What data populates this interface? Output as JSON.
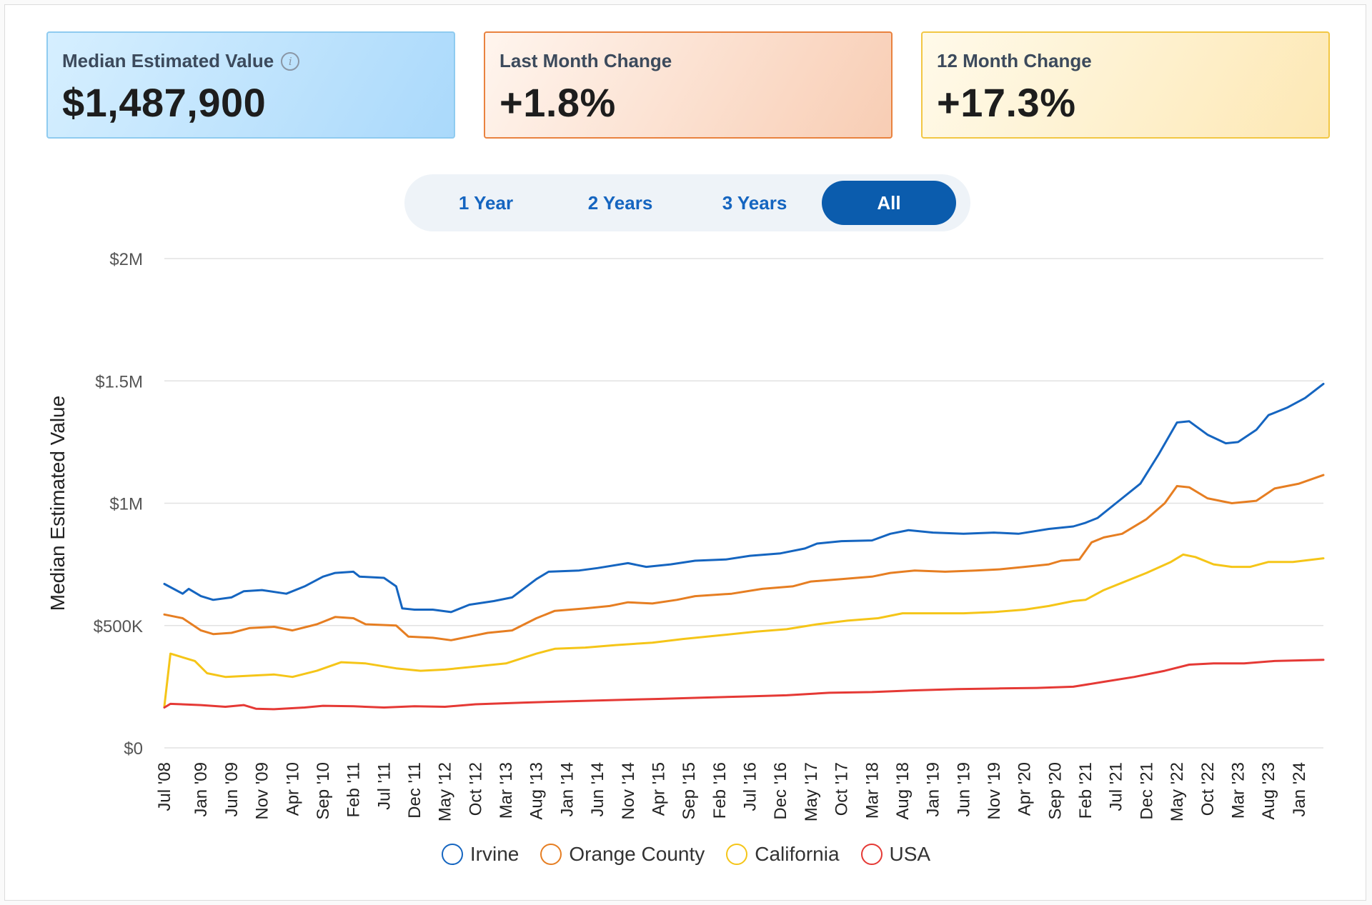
{
  "cards": [
    {
      "label": "Median Estimated Value",
      "value": "$1,487,900",
      "has_info": true
    },
    {
      "label": "Last Month Change",
      "value": "+1.8%"
    },
    {
      "label": "12 Month Change",
      "value": "+17.3%"
    }
  ],
  "info_icon": "info-icon",
  "range_tabs": [
    {
      "label": "1 Year",
      "active": false
    },
    {
      "label": "2 Years",
      "active": false
    },
    {
      "label": "3 Years",
      "active": false
    },
    {
      "label": "All",
      "active": true
    }
  ],
  "colors": {
    "accent": "#0b5cad",
    "grid": "#e2e2e2",
    "irvine": "#1565c0",
    "orange_county": "#e67e22",
    "california": "#f5c518",
    "usa": "#e53935"
  },
  "chart_data": {
    "type": "line",
    "ylabel": "Median Estimated Value",
    "xlabel": "",
    "ylim": [
      0,
      2000000
    ],
    "yticks": [
      {
        "value": 0,
        "label": "$0"
      },
      {
        "value": 500000,
        "label": "$500K"
      },
      {
        "value": 1000000,
        "label": "$1M"
      },
      {
        "value": 1500000,
        "label": "$1.5M"
      },
      {
        "value": 2000000,
        "label": "$2M"
      }
    ],
    "x_start": "2008-07",
    "x_end": "2024-05",
    "xticks": [
      "Jul '08",
      "Jan '09",
      "Jun '09",
      "Nov '09",
      "Apr '10",
      "Sep '10",
      "Feb '11",
      "Jul '11",
      "Dec '11",
      "May '12",
      "Oct '12",
      "Mar '13",
      "Aug '13",
      "Jan '14",
      "Jun '14",
      "Nov '14",
      "Apr '15",
      "Sep '15",
      "Feb '16",
      "Jul '16",
      "Dec '16",
      "May '17",
      "Oct '17",
      "Mar '18",
      "Aug '18",
      "Jan '19",
      "Jun '19",
      "Nov '19",
      "Apr '20",
      "Sep '20",
      "Feb '21",
      "Jul '21",
      "Dec '21",
      "May '22",
      "Oct '22",
      "Mar '23",
      "Aug '23",
      "Jan '24"
    ],
    "legend_position": "bottom",
    "series": [
      {
        "name": "Irvine",
        "color": "#1565c0",
        "points": [
          [
            "2008-07",
            670000
          ],
          [
            "2008-10",
            630000
          ],
          [
            "2008-11",
            650000
          ],
          [
            "2009-01",
            620000
          ],
          [
            "2009-03",
            605000
          ],
          [
            "2009-06",
            615000
          ],
          [
            "2009-08",
            640000
          ],
          [
            "2009-11",
            645000
          ],
          [
            "2010-03",
            630000
          ],
          [
            "2010-06",
            660000
          ],
          [
            "2010-09",
            700000
          ],
          [
            "2010-11",
            715000
          ],
          [
            "2011-02",
            720000
          ],
          [
            "2011-03",
            700000
          ],
          [
            "2011-07",
            695000
          ],
          [
            "2011-09",
            660000
          ],
          [
            "2011-10",
            570000
          ],
          [
            "2011-12",
            565000
          ],
          [
            "2012-03",
            565000
          ],
          [
            "2012-06",
            555000
          ],
          [
            "2012-09",
            585000
          ],
          [
            "2013-01",
            600000
          ],
          [
            "2013-04",
            615000
          ],
          [
            "2013-08",
            690000
          ],
          [
            "2013-10",
            720000
          ],
          [
            "2014-03",
            725000
          ],
          [
            "2014-06",
            735000
          ],
          [
            "2014-11",
            755000
          ],
          [
            "2015-02",
            740000
          ],
          [
            "2015-06",
            750000
          ],
          [
            "2015-10",
            765000
          ],
          [
            "2016-03",
            770000
          ],
          [
            "2016-07",
            785000
          ],
          [
            "2016-12",
            795000
          ],
          [
            "2017-04",
            815000
          ],
          [
            "2017-06",
            835000
          ],
          [
            "2017-10",
            845000
          ],
          [
            "2018-03",
            848000
          ],
          [
            "2018-06",
            875000
          ],
          [
            "2018-09",
            890000
          ],
          [
            "2019-01",
            880000
          ],
          [
            "2019-06",
            875000
          ],
          [
            "2019-11",
            880000
          ],
          [
            "2020-03",
            875000
          ],
          [
            "2020-08",
            895000
          ],
          [
            "2020-12",
            905000
          ],
          [
            "2021-02",
            920000
          ],
          [
            "2021-04",
            940000
          ],
          [
            "2021-07",
            1000000
          ],
          [
            "2021-11",
            1080000
          ],
          [
            "2022-02",
            1200000
          ],
          [
            "2022-05",
            1330000
          ],
          [
            "2022-07",
            1335000
          ],
          [
            "2022-10",
            1280000
          ],
          [
            "2023-01",
            1245000
          ],
          [
            "2023-03",
            1250000
          ],
          [
            "2023-06",
            1300000
          ],
          [
            "2023-08",
            1360000
          ],
          [
            "2023-11",
            1390000
          ],
          [
            "2024-02",
            1430000
          ],
          [
            "2024-05",
            1487900
          ]
        ]
      },
      {
        "name": "Orange County",
        "color": "#e67e22",
        "points": [
          [
            "2008-07",
            545000
          ],
          [
            "2008-10",
            530000
          ],
          [
            "2009-01",
            480000
          ],
          [
            "2009-03",
            465000
          ],
          [
            "2009-06",
            470000
          ],
          [
            "2009-09",
            490000
          ],
          [
            "2010-01",
            495000
          ],
          [
            "2010-04",
            480000
          ],
          [
            "2010-08",
            505000
          ],
          [
            "2010-11",
            535000
          ],
          [
            "2011-02",
            530000
          ],
          [
            "2011-04",
            505000
          ],
          [
            "2011-09",
            500000
          ],
          [
            "2011-11",
            455000
          ],
          [
            "2012-03",
            450000
          ],
          [
            "2012-06",
            440000
          ],
          [
            "2012-09",
            455000
          ],
          [
            "2012-12",
            470000
          ],
          [
            "2013-04",
            480000
          ],
          [
            "2013-08",
            530000
          ],
          [
            "2013-11",
            560000
          ],
          [
            "2014-04",
            570000
          ],
          [
            "2014-08",
            580000
          ],
          [
            "2014-11",
            595000
          ],
          [
            "2015-03",
            590000
          ],
          [
            "2015-07",
            605000
          ],
          [
            "2015-10",
            620000
          ],
          [
            "2016-04",
            630000
          ],
          [
            "2016-09",
            650000
          ],
          [
            "2017-02",
            660000
          ],
          [
            "2017-05",
            680000
          ],
          [
            "2017-10",
            690000
          ],
          [
            "2018-03",
            700000
          ],
          [
            "2018-06",
            715000
          ],
          [
            "2018-10",
            725000
          ],
          [
            "2019-03",
            720000
          ],
          [
            "2019-08",
            725000
          ],
          [
            "2019-12",
            730000
          ],
          [
            "2020-04",
            740000
          ],
          [
            "2020-08",
            750000
          ],
          [
            "2020-10",
            765000
          ],
          [
            "2021-01",
            770000
          ],
          [
            "2021-03",
            840000
          ],
          [
            "2021-05",
            860000
          ],
          [
            "2021-08",
            875000
          ],
          [
            "2021-12",
            935000
          ],
          [
            "2022-03",
            1000000
          ],
          [
            "2022-05",
            1070000
          ],
          [
            "2022-07",
            1065000
          ],
          [
            "2022-10",
            1020000
          ],
          [
            "2023-02",
            1000000
          ],
          [
            "2023-06",
            1010000
          ],
          [
            "2023-09",
            1060000
          ],
          [
            "2024-01",
            1080000
          ],
          [
            "2024-05",
            1115000
          ]
        ]
      },
      {
        "name": "California",
        "color": "#f5c518",
        "points": [
          [
            "2008-07",
            170000
          ],
          [
            "2008-08",
            385000
          ],
          [
            "2008-12",
            355000
          ],
          [
            "2009-02",
            305000
          ],
          [
            "2009-05",
            290000
          ],
          [
            "2009-09",
            295000
          ],
          [
            "2010-01",
            300000
          ],
          [
            "2010-04",
            290000
          ],
          [
            "2010-08",
            315000
          ],
          [
            "2010-12",
            350000
          ],
          [
            "2011-04",
            345000
          ],
          [
            "2011-09",
            325000
          ],
          [
            "2012-01",
            315000
          ],
          [
            "2012-05",
            320000
          ],
          [
            "2012-09",
            330000
          ],
          [
            "2013-03",
            345000
          ],
          [
            "2013-08",
            385000
          ],
          [
            "2013-11",
            405000
          ],
          [
            "2014-04",
            410000
          ],
          [
            "2014-09",
            420000
          ],
          [
            "2015-03",
            430000
          ],
          [
            "2015-08",
            445000
          ],
          [
            "2016-02",
            460000
          ],
          [
            "2016-08",
            475000
          ],
          [
            "2017-01",
            485000
          ],
          [
            "2017-06",
            505000
          ],
          [
            "2017-11",
            520000
          ],
          [
            "2018-04",
            530000
          ],
          [
            "2018-08",
            550000
          ],
          [
            "2019-01",
            550000
          ],
          [
            "2019-06",
            550000
          ],
          [
            "2019-11",
            555000
          ],
          [
            "2020-04",
            565000
          ],
          [
            "2020-08",
            580000
          ],
          [
            "2020-12",
            600000
          ],
          [
            "2021-02",
            605000
          ],
          [
            "2021-05",
            645000
          ],
          [
            "2021-08",
            675000
          ],
          [
            "2021-12",
            715000
          ],
          [
            "2022-04",
            760000
          ],
          [
            "2022-06",
            790000
          ],
          [
            "2022-08",
            780000
          ],
          [
            "2022-11",
            750000
          ],
          [
            "2023-02",
            740000
          ],
          [
            "2023-05",
            740000
          ],
          [
            "2023-08",
            760000
          ],
          [
            "2023-12",
            760000
          ],
          [
            "2024-05",
            775000
          ]
        ]
      },
      {
        "name": "USA",
        "color": "#e53935",
        "points": [
          [
            "2008-07",
            165000
          ],
          [
            "2008-08",
            180000
          ],
          [
            "2009-01",
            175000
          ],
          [
            "2009-05",
            168000
          ],
          [
            "2009-08",
            175000
          ],
          [
            "2009-10",
            160000
          ],
          [
            "2010-01",
            158000
          ],
          [
            "2010-06",
            165000
          ],
          [
            "2010-09",
            172000
          ],
          [
            "2011-02",
            170000
          ],
          [
            "2011-07",
            165000
          ],
          [
            "2011-12",
            170000
          ],
          [
            "2012-05",
            168000
          ],
          [
            "2012-10",
            178000
          ],
          [
            "2013-06",
            185000
          ],
          [
            "2014-01",
            190000
          ],
          [
            "2014-08",
            195000
          ],
          [
            "2015-04",
            200000
          ],
          [
            "2015-11",
            205000
          ],
          [
            "2016-06",
            210000
          ],
          [
            "2017-01",
            215000
          ],
          [
            "2017-08",
            225000
          ],
          [
            "2018-03",
            228000
          ],
          [
            "2018-10",
            235000
          ],
          [
            "2019-05",
            240000
          ],
          [
            "2019-12",
            243000
          ],
          [
            "2020-06",
            245000
          ],
          [
            "2020-12",
            250000
          ],
          [
            "2021-05",
            270000
          ],
          [
            "2021-10",
            290000
          ],
          [
            "2022-03",
            315000
          ],
          [
            "2022-07",
            340000
          ],
          [
            "2022-11",
            345000
          ],
          [
            "2023-04",
            345000
          ],
          [
            "2023-09",
            355000
          ],
          [
            "2024-05",
            360000
          ]
        ]
      }
    ]
  }
}
